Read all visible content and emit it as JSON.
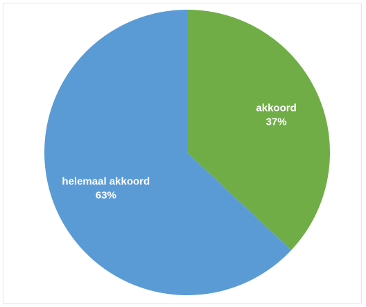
{
  "chart_data": {
    "type": "pie",
    "categories": [
      "akkoord",
      "helemaal akkoord"
    ],
    "values": [
      37,
      63
    ],
    "labels": [
      {
        "name": "akkoord",
        "percent": "37%"
      },
      {
        "name": "helemaal akkoord",
        "percent": "63%"
      }
    ],
    "colors": [
      "#70ad47",
      "#5b9bd5"
    ],
    "start_angle_deg": 0,
    "direction": "clockwise",
    "legend": "none"
  }
}
